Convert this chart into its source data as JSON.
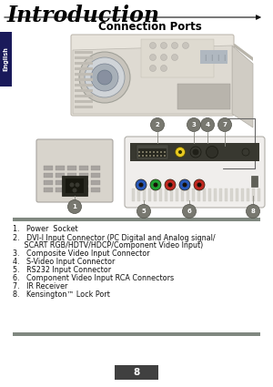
{
  "title": "Introduction",
  "subtitle": "Connection Ports",
  "page_number": "8",
  "bg_color": "#ffffff",
  "title_color": "#000000",
  "subtitle_color": "#000000",
  "tab_color": "#1a1a5a",
  "tab_text": "English",
  "arrow_color": "#111111",
  "list_items": [
    [
      "1.",
      "Power  Socket"
    ],
    [
      "2.",
      "DVI-I Input Connector (PC Digital and Analog signal/\n     SCART RGB/HDTV/HDCP/Component Video Input)"
    ],
    [
      "3.",
      "Composite Video Input Connector"
    ],
    [
      "4.",
      "S-Video Input Connector"
    ],
    [
      "5.",
      "RS232 Input Connector"
    ],
    [
      "6.",
      "Component Video Input RCA Connectors"
    ],
    [
      "7.",
      "IR Receiver"
    ],
    [
      "8.",
      "Kensington™ Lock Port"
    ]
  ],
  "list_color": "#111111",
  "list_fontsize": 5.8,
  "title_fontsize": 17,
  "subtitle_fontsize": 8.5
}
